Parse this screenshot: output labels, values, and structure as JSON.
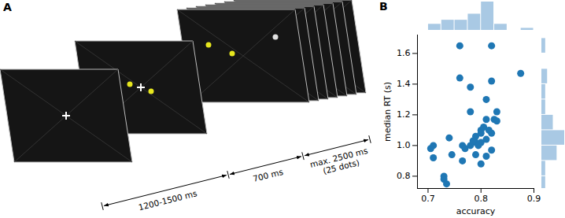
{
  "diagram": {
    "panel_label": "A",
    "durations": [
      {
        "label": [
          "1200-1500 ms"
        ]
      },
      {
        "label": [
          "700 ms"
        ]
      },
      {
        "label": [
          "max. 2500 ms",
          "(25 dots)"
        ]
      }
    ]
  },
  "chart_data": {
    "type": "scatter",
    "panel_label": "B",
    "x_label": "accuracy",
    "y_label": "median RT (s)",
    "xlim": [
      0.68,
      0.9
    ],
    "xticks": [
      0.7,
      0.8,
      0.9
    ],
    "ylim": [
      0.72,
      1.72
    ],
    "yticks": [
      0.8,
      {
        "value": 1,
        "label": "1.0"
      },
      1.2,
      1.4,
      1.6
    ],
    "color": "#1f77b4",
    "x": [
      0.71,
      0.705,
      0.71,
      0.73,
      0.73,
      0.735,
      0.745,
      0.74,
      0.76,
      0.76,
      0.765,
      0.77,
      0.78,
      0.78,
      0.78,
      0.79,
      0.79,
      0.785,
      0.79,
      0.8,
      0.8,
      0.8,
      0.795,
      0.805,
      0.81,
      0.81,
      0.81,
      0.81,
      0.815,
      0.82,
      0.82,
      0.82,
      0.82,
      0.825,
      0.83,
      0.83,
      0.875,
      0.8,
      0.765
    ],
    "y": [
      1.0,
      0.98,
      0.92,
      0.8,
      0.78,
      0.75,
      0.94,
      1.05,
      1.65,
      1.44,
      1.0,
      0.98,
      1.38,
      1.22,
      1.0,
      1.02,
      1.06,
      1.03,
      0.94,
      1.1,
      1.08,
      1.02,
      1.0,
      1.12,
      1.3,
      1.17,
      1.04,
      0.93,
      1.1,
      1.65,
      1.42,
      1.08,
      0.97,
      1.17,
      1.22,
      1.16,
      1.47,
      0.88,
      0.9
    ],
    "x_hist": {
      "color": "#a9c9e4",
      "bins": [
        0.7,
        0.725,
        0.75,
        0.775,
        0.8,
        0.825,
        0.85,
        0.875,
        0.9
      ],
      "counts": [
        3,
        5,
        5,
        8,
        14,
        3,
        0,
        1
      ]
    },
    "y_hist": {
      "color": "#a9c9e4",
      "bins": [
        0.7,
        0.8,
        0.9,
        1.0,
        1.1,
        1.2,
        1.3,
        1.4,
        1.5,
        1.6,
        1.7
      ],
      "counts": [
        2,
        2,
        8,
        12,
        6,
        2,
        2,
        3,
        0,
        2
      ]
    }
  }
}
